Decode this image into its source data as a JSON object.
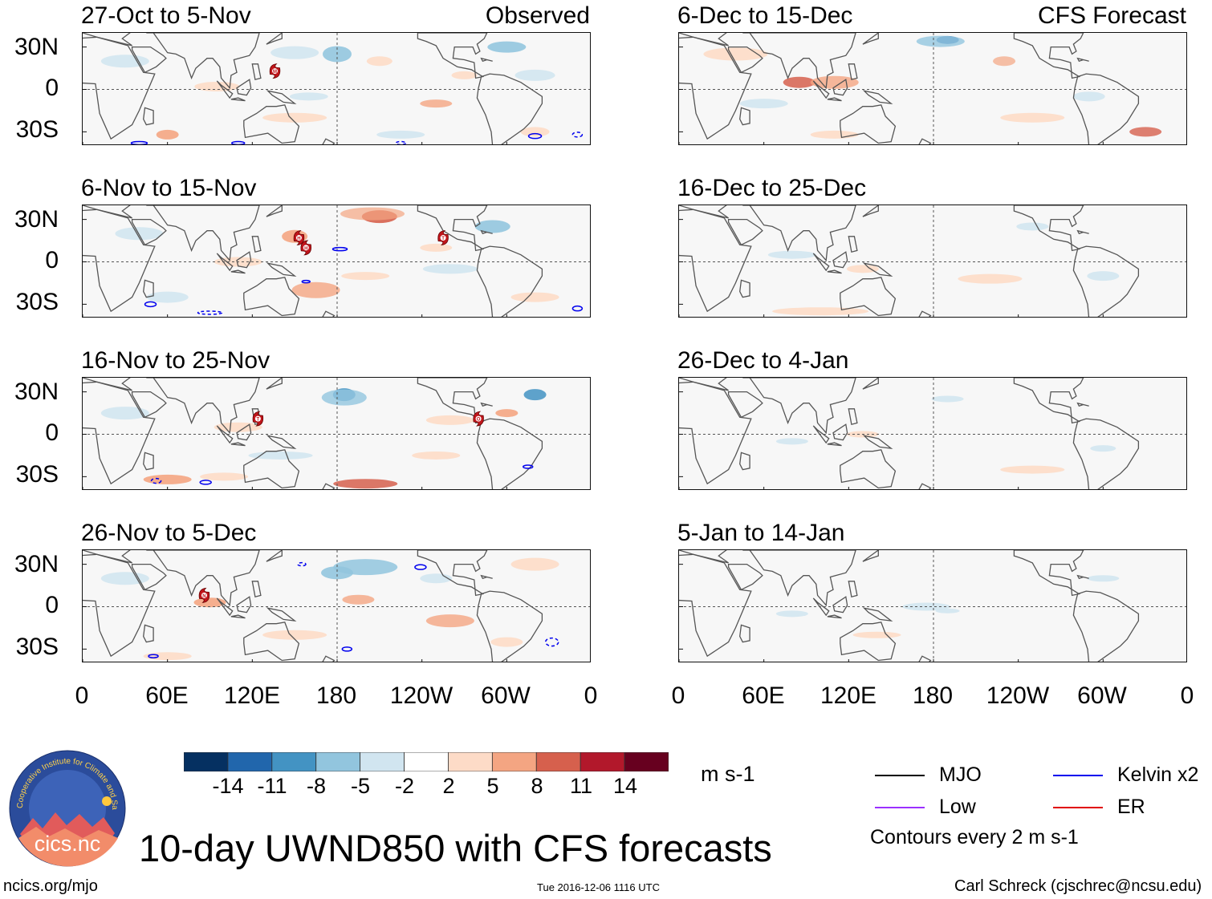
{
  "observed_label": "Observed",
  "forecast_label": "CFS Forecast",
  "panels_left": [
    {
      "title": "27-Oct to 5-Nov"
    },
    {
      "title": "6-Nov to 15-Nov"
    },
    {
      "title": "16-Nov to 25-Nov"
    },
    {
      "title": "26-Nov to 5-Dec"
    }
  ],
  "panels_right": [
    {
      "title": "6-Dec to 15-Dec"
    },
    {
      "title": "16-Dec to 25-Dec"
    },
    {
      "title": "26-Dec to 4-Jan"
    },
    {
      "title": "5-Jan to 14-Jan"
    }
  ],
  "lat_labels": [
    "30N",
    "0",
    "30S"
  ],
  "lon_labels": [
    "0",
    "60E",
    "120E",
    "180",
    "120W",
    "60W",
    "0"
  ],
  "colorbar": {
    "unit": "m s-1",
    "labels": [
      "-14",
      "-11",
      "-8",
      "-5",
      "-2",
      "2",
      "5",
      "8",
      "11",
      "14"
    ],
    "colors": [
      "#053061",
      "#2166ac",
      "#4393c3",
      "#92c5de",
      "#d1e5f0",
      "#ffffff",
      "#fddbc7",
      "#f4a582",
      "#d6604d",
      "#b2182b",
      "#67001f"
    ]
  },
  "legend": {
    "mjo": "MJO",
    "kelvin": "Kelvin x2",
    "low": "Low",
    "er": "ER",
    "contours": "Contours every 2 m s-1",
    "colors": {
      "mjo": "#000000",
      "kelvin": "#0000ee",
      "low": "#9b30ff",
      "er": "#e00000"
    }
  },
  "logo_text": "cics.nc",
  "logo_ring_text": "Cooperative Institute for Climate and Satellites",
  "main_title": "10-day UWND850 with CFS forecasts",
  "footer": {
    "left": "ncics.org/mjo",
    "center": "Tue 2016-12-06 1116 UTC",
    "right": "Carl Schreck (cjschrec@ncsu.edu)"
  },
  "storms": [
    {
      "panel": 0,
      "label": "M",
      "lon": 136,
      "lat": 13
    },
    {
      "panel": 1,
      "label": "H",
      "lon": 153,
      "lat": 17
    },
    {
      "panel": 1,
      "label": "H",
      "lon": 158,
      "lat": 10
    },
    {
      "panel": 1,
      "label": "T",
      "lon": 255,
      "lat": 17
    },
    {
      "panel": 2,
      "label": "T",
      "lon": 124,
      "lat": 11
    },
    {
      "panel": 2,
      "label": "O",
      "lon": 280,
      "lat": 11
    },
    {
      "panel": 3,
      "label": "N",
      "lon": 86,
      "lat": 8
    }
  ]
}
